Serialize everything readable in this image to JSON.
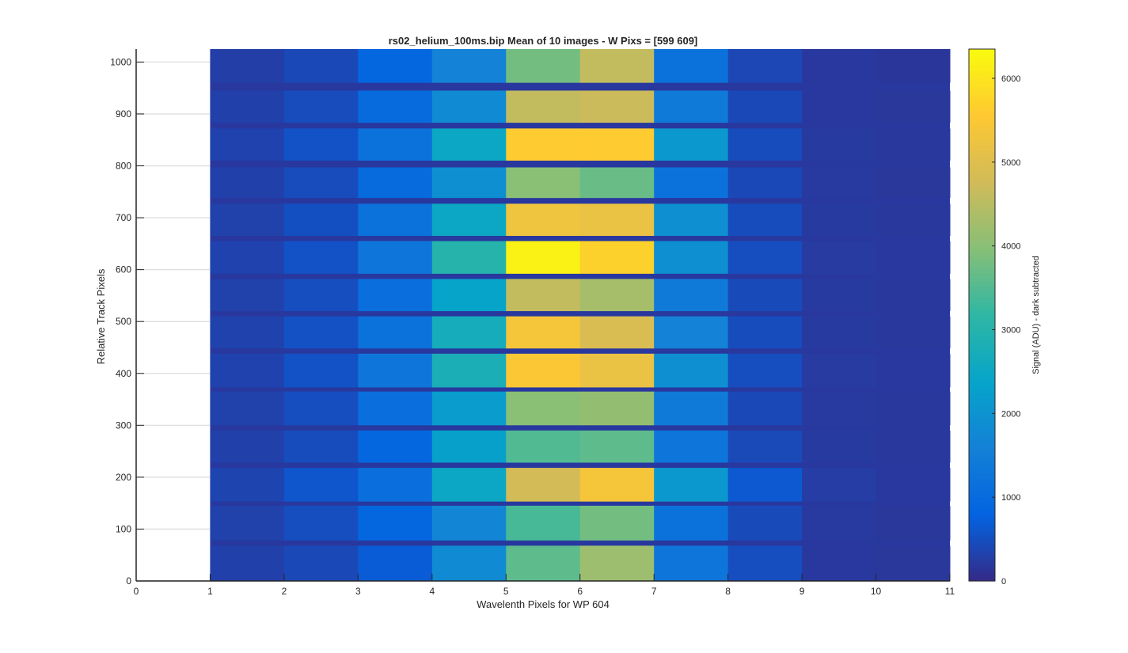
{
  "chart_data": {
    "type": "heatmap",
    "title": "rs02_helium_100ms.bip  Mean of 10 images - W Pixs = [599  609]",
    "xlabel": "Wavelenth Pixels for WP 604",
    "ylabel": "Relative Track Pixels",
    "colorbar_label": "Signal (ADU) - dark subtracted",
    "colormap": "parula",
    "xlim": [
      0,
      11
    ],
    "ylim": [
      0,
      1025
    ],
    "x_ticks": [
      "0",
      "1",
      "2",
      "3",
      "4",
      "5",
      "6",
      "7",
      "8",
      "9",
      "10",
      "11"
    ],
    "y_ticks": [
      "0",
      "100",
      "200",
      "300",
      "400",
      "500",
      "600",
      "700",
      "800",
      "900",
      "1000"
    ],
    "colorbar_range": [
      0,
      6350
    ],
    "colorbar_ticks": [
      "0",
      "1000",
      "2000",
      "3000",
      "4000",
      "5000",
      "6000"
    ],
    "grid": "horizontal",
    "background_level": 250,
    "gap_level": 200,
    "pixel_columns": [
      "1-2",
      "2-3",
      "3-4",
      "4-5",
      "5-6",
      "6-7",
      "7-8",
      "8-9",
      "9-10",
      "10-11"
    ],
    "tracks": [
      {
        "y_range": [
          0,
          68
        ],
        "values": [
          300,
          420,
          700,
          1800,
          3600,
          4200,
          1300,
          500,
          200,
          180
        ]
      },
      {
        "y_range": [
          78,
          145
        ],
        "values": [
          320,
          500,
          900,
          1700,
          3400,
          3800,
          1200,
          450,
          210,
          180
        ]
      },
      {
        "y_range": [
          153,
          218
        ],
        "values": [
          360,
          600,
          1100,
          2500,
          4800,
          5400,
          2100,
          650,
          260,
          200
        ]
      },
      {
        "y_range": [
          228,
          290
        ],
        "values": [
          310,
          480,
          900,
          2300,
          3500,
          3600,
          1300,
          430,
          220,
          190
        ]
      },
      {
        "y_range": [
          300,
          365
        ],
        "values": [
          320,
          500,
          1100,
          2200,
          4000,
          4100,
          1400,
          420,
          210,
          190
        ]
      },
      {
        "y_range": [
          373,
          438
        ],
        "values": [
          340,
          560,
          1300,
          2800,
          5500,
          5200,
          1900,
          500,
          230,
          200
        ]
      },
      {
        "y_range": [
          448,
          510
        ],
        "values": [
          330,
          540,
          1200,
          2700,
          5400,
          4900,
          1600,
          480,
          220,
          190
        ]
      },
      {
        "y_range": [
          520,
          582
        ],
        "values": [
          320,
          500,
          1100,
          2400,
          4600,
          4300,
          1400,
          450,
          220,
          190
        ]
      },
      {
        "y_range": [
          592,
          655
        ],
        "values": [
          340,
          560,
          1300,
          3000,
          6200,
          5700,
          1900,
          500,
          230,
          200
        ]
      },
      {
        "y_range": [
          665,
          727
        ],
        "values": [
          320,
          520,
          1200,
          2500,
          5300,
          5200,
          1900,
          480,
          220,
          190
        ]
      },
      {
        "y_range": [
          738,
          797
        ],
        "values": [
          300,
          460,
          1000,
          1900,
          4000,
          3700,
          1200,
          420,
          210,
          180
        ]
      },
      {
        "y_range": [
          810,
          872
        ],
        "values": [
          340,
          560,
          1200,
          2500,
          5600,
          5600,
          2100,
          480,
          220,
          190
        ]
      },
      {
        "y_range": [
          883,
          945
        ],
        "values": [
          300,
          460,
          1000,
          1800,
          4600,
          4700,
          1400,
          420,
          200,
          180
        ]
      },
      {
        "y_range": [
          960,
          1025
        ],
        "values": [
          280,
          420,
          900,
          1600,
          3800,
          4600,
          1200,
          400,
          200,
          170
        ]
      }
    ]
  }
}
